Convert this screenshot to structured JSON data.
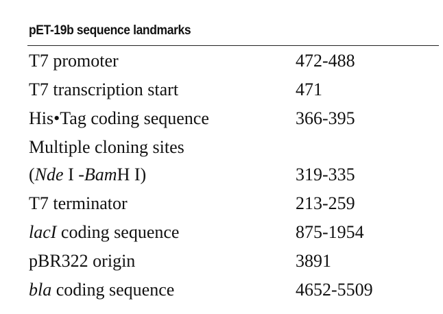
{
  "title": "pET-19b sequence landmarks",
  "rows": [
    {
      "label_parts": [
        "T7 promoter"
      ],
      "value": "472-488"
    },
    {
      "label_parts": [
        "T7 transcription start"
      ],
      "value": "471"
    },
    {
      "label_parts": [
        "His•Tag coding sequence"
      ],
      "value": "366-395"
    },
    {
      "label_parts": [
        "Multiple cloning sites"
      ],
      "value": ""
    },
    {
      "label_parts": [
        "(",
        "Nde",
        " I -",
        "Bam",
        "H I)"
      ],
      "value": "319-335"
    },
    {
      "label_parts": [
        "T7 terminator"
      ],
      "value": "213-259"
    },
    {
      "label_parts": [
        "lacI",
        " coding sequence"
      ],
      "value": "875-1954"
    },
    {
      "label_parts": [
        "pBR322 origin"
      ],
      "value": "3891"
    },
    {
      "label_parts": [
        "bla",
        " coding sequence"
      ],
      "value": "4652-5509"
    }
  ]
}
